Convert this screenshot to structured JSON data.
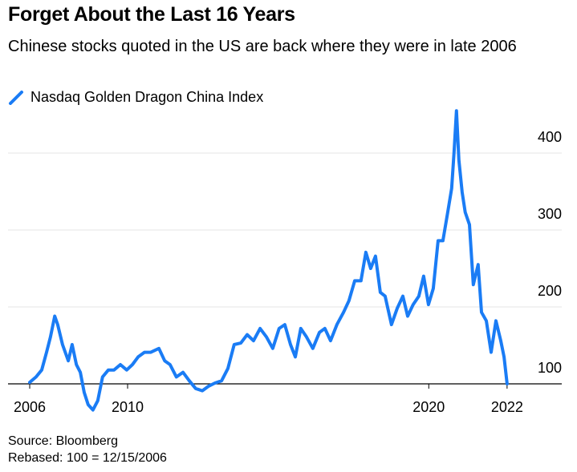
{
  "chart_data": {
    "type": "line",
    "title": "Forget About the Last 16 Years",
    "subtitle": "Chinese stocks quoted in the US are back where they were in late 2006",
    "source": "Source: Bloomberg",
    "note": "Rebased: 100 = 12/15/2006",
    "x": [
      2006.95,
      2007.16,
      2007.35,
      2007.51,
      2007.64,
      2007.78,
      2007.88,
      2008.04,
      2008.23,
      2008.36,
      2008.5,
      2008.63,
      2008.76,
      2008.89,
      2009.05,
      2009.21,
      2009.37,
      2009.56,
      2009.75,
      2009.96,
      2010.17,
      2010.36,
      2010.55,
      2010.76,
      2010.97,
      2011.24,
      2011.43,
      2011.61,
      2011.82,
      2012.04,
      2012.25,
      2012.46,
      2012.68,
      2012.89,
      2013.1,
      2013.32,
      2013.53,
      2013.74,
      2013.96,
      2014.17,
      2014.38,
      2014.6,
      2014.81,
      2015.02,
      2015.23,
      2015.42,
      2015.61,
      2015.77,
      2015.95,
      2016.14,
      2016.35,
      2016.57,
      2016.75,
      2016.94,
      2017.15,
      2017.37,
      2017.55,
      2017.74,
      2017.95,
      2018.11,
      2018.27,
      2018.43,
      2018.59,
      2018.75,
      2018.96,
      2019.15,
      2019.34,
      2019.5,
      2019.68,
      2019.87,
      2020.03,
      2020.19,
      2020.35,
      2020.51,
      2020.67,
      2020.83,
      2020.96,
      2021.04,
      2021.12,
      2021.2,
      2021.31,
      2021.41,
      2021.55,
      2021.68,
      2021.84,
      2021.95,
      2022.11,
      2022.27,
      2022.43,
      2022.59,
      2022.7,
      2022.8
    ],
    "series": [
      {
        "name": "Nasdaq Golden Dragon China Index",
        "color": "#1a7cf5",
        "values": [
          102,
          109,
          118,
          141,
          161,
          188,
          177,
          151,
          130,
          151,
          125,
          115,
          89,
          73,
          66,
          78,
          109,
          118,
          118,
          125,
          118,
          125,
          135,
          141,
          141,
          146,
          130,
          125,
          109,
          115,
          104,
          94,
          91,
          97,
          101,
          104,
          120,
          151,
          153,
          164,
          156,
          172,
          161,
          146,
          172,
          177,
          151,
          135,
          172,
          161,
          146,
          167,
          172,
          156,
          177,
          193,
          208,
          234,
          234,
          271,
          250,
          266,
          219,
          214,
          177,
          198,
          214,
          188,
          203,
          214,
          240,
          203,
          224,
          286,
          286,
          323,
          354,
          401,
          455,
          391,
          349,
          323,
          307,
          229,
          255,
          193,
          182,
          141,
          182,
          156,
          135,
          100
        ]
      }
    ],
    "xlim": [
      2006.23,
      2023.15
    ],
    "ylim": [
      60,
      460
    ],
    "xticks": [
      {
        "value": 2006.95,
        "label": "2006"
      },
      {
        "value": 2010.2,
        "label": "2010"
      },
      {
        "value": 2020.2,
        "label": "2020"
      },
      {
        "value": 2022.8,
        "label": "2022"
      }
    ],
    "yticks": [
      100,
      200,
      300,
      400
    ],
    "grid": true
  }
}
